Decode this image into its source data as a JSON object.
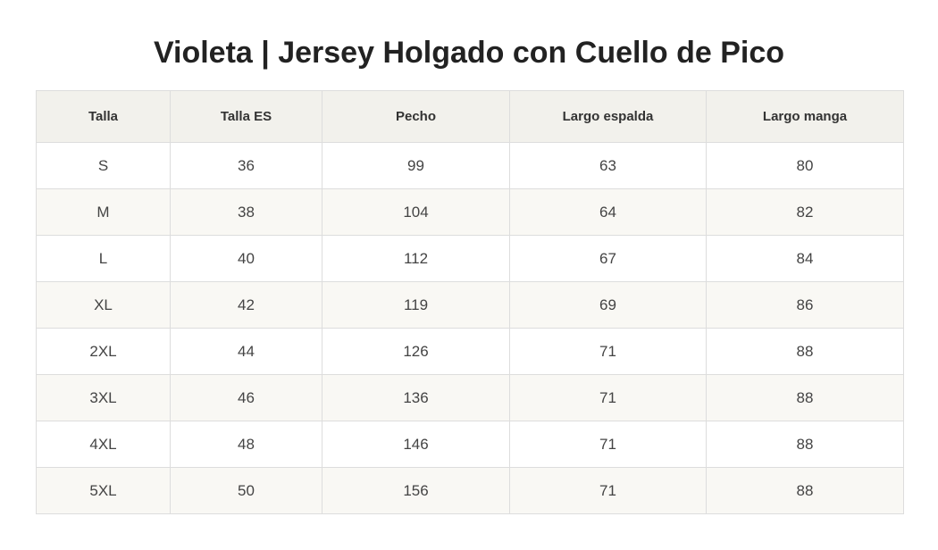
{
  "title": "Violeta | Jersey Holgado con Cuello de Pico",
  "table": {
    "headers": [
      "Talla",
      "Talla ES",
      "Pecho",
      "Largo espalda",
      "Largo manga"
    ],
    "rows": [
      [
        "S",
        "36",
        "99",
        "63",
        "80"
      ],
      [
        "M",
        "38",
        "104",
        "64",
        "82"
      ],
      [
        "L",
        "40",
        "112",
        "67",
        "84"
      ],
      [
        "XL",
        "42",
        "119",
        "69",
        "86"
      ],
      [
        "2XL",
        "44",
        "126",
        "71",
        "88"
      ],
      [
        "3XL",
        "46",
        "136",
        "71",
        "88"
      ],
      [
        "4XL",
        "48",
        "146",
        "71",
        "88"
      ],
      [
        "5XL",
        "50",
        "156",
        "71",
        "88"
      ]
    ]
  },
  "colors": {
    "header_bg": "#f2f1ec",
    "alt_row_bg": "#f9f8f4",
    "border": "#dddddd"
  }
}
